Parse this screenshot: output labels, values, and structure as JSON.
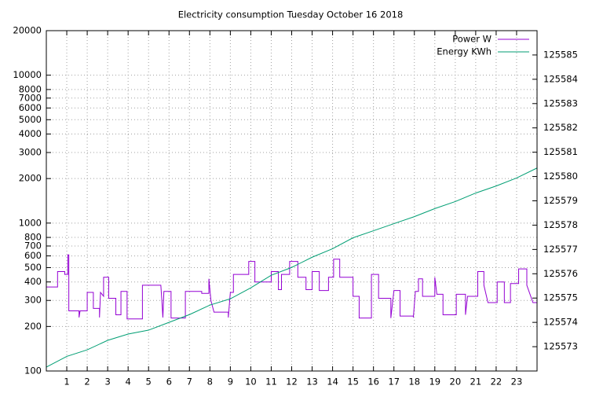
{
  "chart_data": {
    "type": "line",
    "title": "Electricity consumption Tuesday October 16 2018",
    "yscale": "log",
    "grid": true,
    "legend": "top right",
    "xlim": [
      0,
      24
    ],
    "xticks": [
      1,
      2,
      3,
      4,
      5,
      6,
      7,
      8,
      9,
      10,
      11,
      12,
      13,
      14,
      15,
      16,
      17,
      18,
      19,
      20,
      21,
      22,
      23
    ],
    "ylim": [
      100,
      20000
    ],
    "yticks": [
      100,
      200,
      300,
      400,
      500,
      600,
      700,
      800,
      1000,
      2000,
      3000,
      4000,
      5000,
      6000,
      7000,
      8000,
      10000,
      20000
    ],
    "y2lim": [
      125572,
      125586
    ],
    "y2ticks": [
      125573,
      125574,
      125575,
      125576,
      125577,
      125578,
      125579,
      125580,
      125581,
      125582,
      125583,
      125584,
      125585
    ],
    "series": [
      {
        "name": "Power W",
        "color": "#9400d3",
        "x": [
          0,
          0.55,
          0.55,
          0.9,
          0.9,
          1.05,
          1.05,
          1.1,
          1.1,
          1.6,
          1.6,
          1.65,
          2.0,
          2.0,
          2.3,
          2.3,
          2.6,
          2.6,
          2.65,
          2.8,
          2.8,
          3.05,
          3.05,
          3.4,
          3.4,
          3.65,
          3.65,
          3.95,
          3.95,
          4.7,
          4.7,
          5.6,
          5.65,
          5.7,
          5.75,
          6.1,
          6.1,
          6.8,
          6.8,
          7.6,
          7.6,
          7.95,
          7.95,
          8.05,
          8.2,
          8.9,
          8.9,
          9.0,
          9.15,
          9.15,
          9.9,
          9.9,
          10.2,
          10.2,
          11.0,
          11.0,
          11.35,
          11.35,
          11.5,
          11.5,
          11.9,
          11.9,
          12.3,
          12.3,
          12.7,
          12.7,
          13.0,
          13.0,
          13.35,
          13.35,
          13.8,
          13.8,
          14.05,
          14.05,
          14.35,
          14.35,
          15.0,
          15.0,
          15.3,
          15.3,
          15.9,
          15.9,
          16.25,
          16.25,
          16.85,
          16.85,
          17.0,
          17.3,
          17.3,
          17.95,
          17.95,
          18.05,
          18.2,
          18.2,
          18.4,
          18.4,
          19.0,
          19.0,
          19.1,
          19.4,
          19.4,
          20.05,
          20.05,
          20.5,
          20.5,
          20.6,
          21.1,
          21.1,
          21.4,
          21.4,
          21.6,
          22.05,
          22.05,
          22.4,
          22.4,
          22.7,
          22.7,
          23.1,
          23.1,
          23.5,
          23.5,
          23.8,
          24
        ],
        "values": [
          370,
          370,
          470,
          470,
          450,
          450,
          610,
          610,
          255,
          255,
          230,
          255,
          255,
          340,
          340,
          265,
          265,
          230,
          340,
          320,
          430,
          430,
          310,
          310,
          240,
          240,
          345,
          345,
          225,
          225,
          380,
          380,
          300,
          230,
          345,
          345,
          228,
          228,
          345,
          345,
          335,
          335,
          420,
          300,
          250,
          250,
          230,
          340,
          340,
          450,
          450,
          550,
          550,
          400,
          400,
          470,
          470,
          355,
          355,
          450,
          450,
          550,
          550,
          430,
          430,
          355,
          355,
          470,
          470,
          350,
          350,
          430,
          430,
          570,
          570,
          430,
          430,
          320,
          320,
          228,
          228,
          450,
          450,
          310,
          310,
          228,
          350,
          350,
          235,
          235,
          230,
          345,
          345,
          420,
          420,
          320,
          320,
          430,
          330,
          330,
          240,
          240,
          330,
          330,
          240,
          320,
          320,
          470,
          470,
          380,
          290,
          290,
          400,
          400,
          290,
          290,
          390,
          390,
          490,
          490,
          380,
          290,
          290
        ]
      },
      {
        "name": "Energy KWh",
        "color": "#009e73",
        "axis": "y2",
        "x": [
          0,
          1,
          2,
          3,
          4,
          5,
          6,
          7,
          8,
          9,
          10,
          11,
          12,
          13,
          14,
          15,
          16,
          17,
          18,
          19,
          20,
          21,
          22,
          23,
          24
        ],
        "values": [
          125572.16,
          125572.6,
          125572.87,
          125573.26,
          125573.52,
          125573.68,
          125574.0,
          125574.32,
          125574.71,
          125574.97,
          125575.42,
          125575.94,
          125576.26,
          125576.68,
          125577.03,
          125577.48,
          125577.77,
          125578.06,
          125578.35,
          125578.68,
          125578.97,
          125579.32,
          125579.61,
          125579.94,
          125580.35
        ]
      }
    ]
  }
}
